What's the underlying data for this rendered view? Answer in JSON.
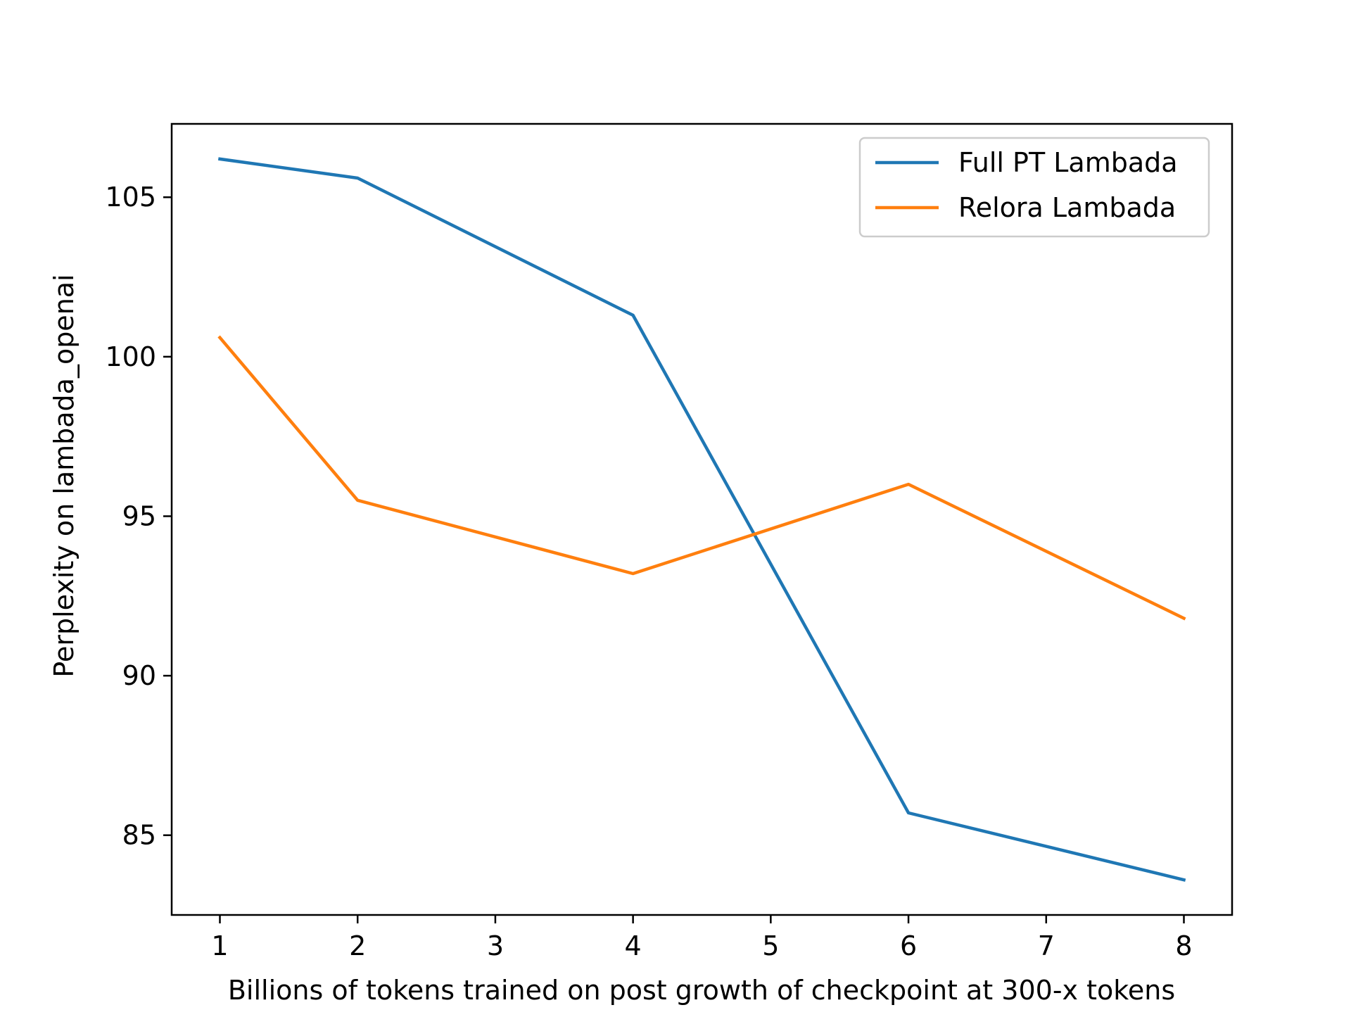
{
  "chart_data": {
    "type": "line",
    "title": "",
    "xlabel": "Billions of tokens trained on post growth of checkpoint at 300-x tokens",
    "ylabel": "Perplexity on lambada_openai",
    "xlim": [
      0.65,
      8.35
    ],
    "ylim": [
      82.5,
      107.3
    ],
    "xticks": [
      1,
      2,
      3,
      4,
      5,
      6,
      7,
      8
    ],
    "yticks": [
      85,
      90,
      95,
      100,
      105
    ],
    "grid": false,
    "legend_position": "top-right",
    "series": [
      {
        "name": "Full PT Lambada",
        "color": "#1f77b4",
        "x": [
          1,
          2,
          4,
          6,
          8
        ],
        "y": [
          106.2,
          105.6,
          101.3,
          85.7,
          83.6
        ]
      },
      {
        "name": "Relora Lambada",
        "color": "#ff7f0e",
        "x": [
          1,
          2,
          4,
          6,
          8
        ],
        "y": [
          100.6,
          95.5,
          93.2,
          96.0,
          91.8
        ]
      }
    ]
  }
}
